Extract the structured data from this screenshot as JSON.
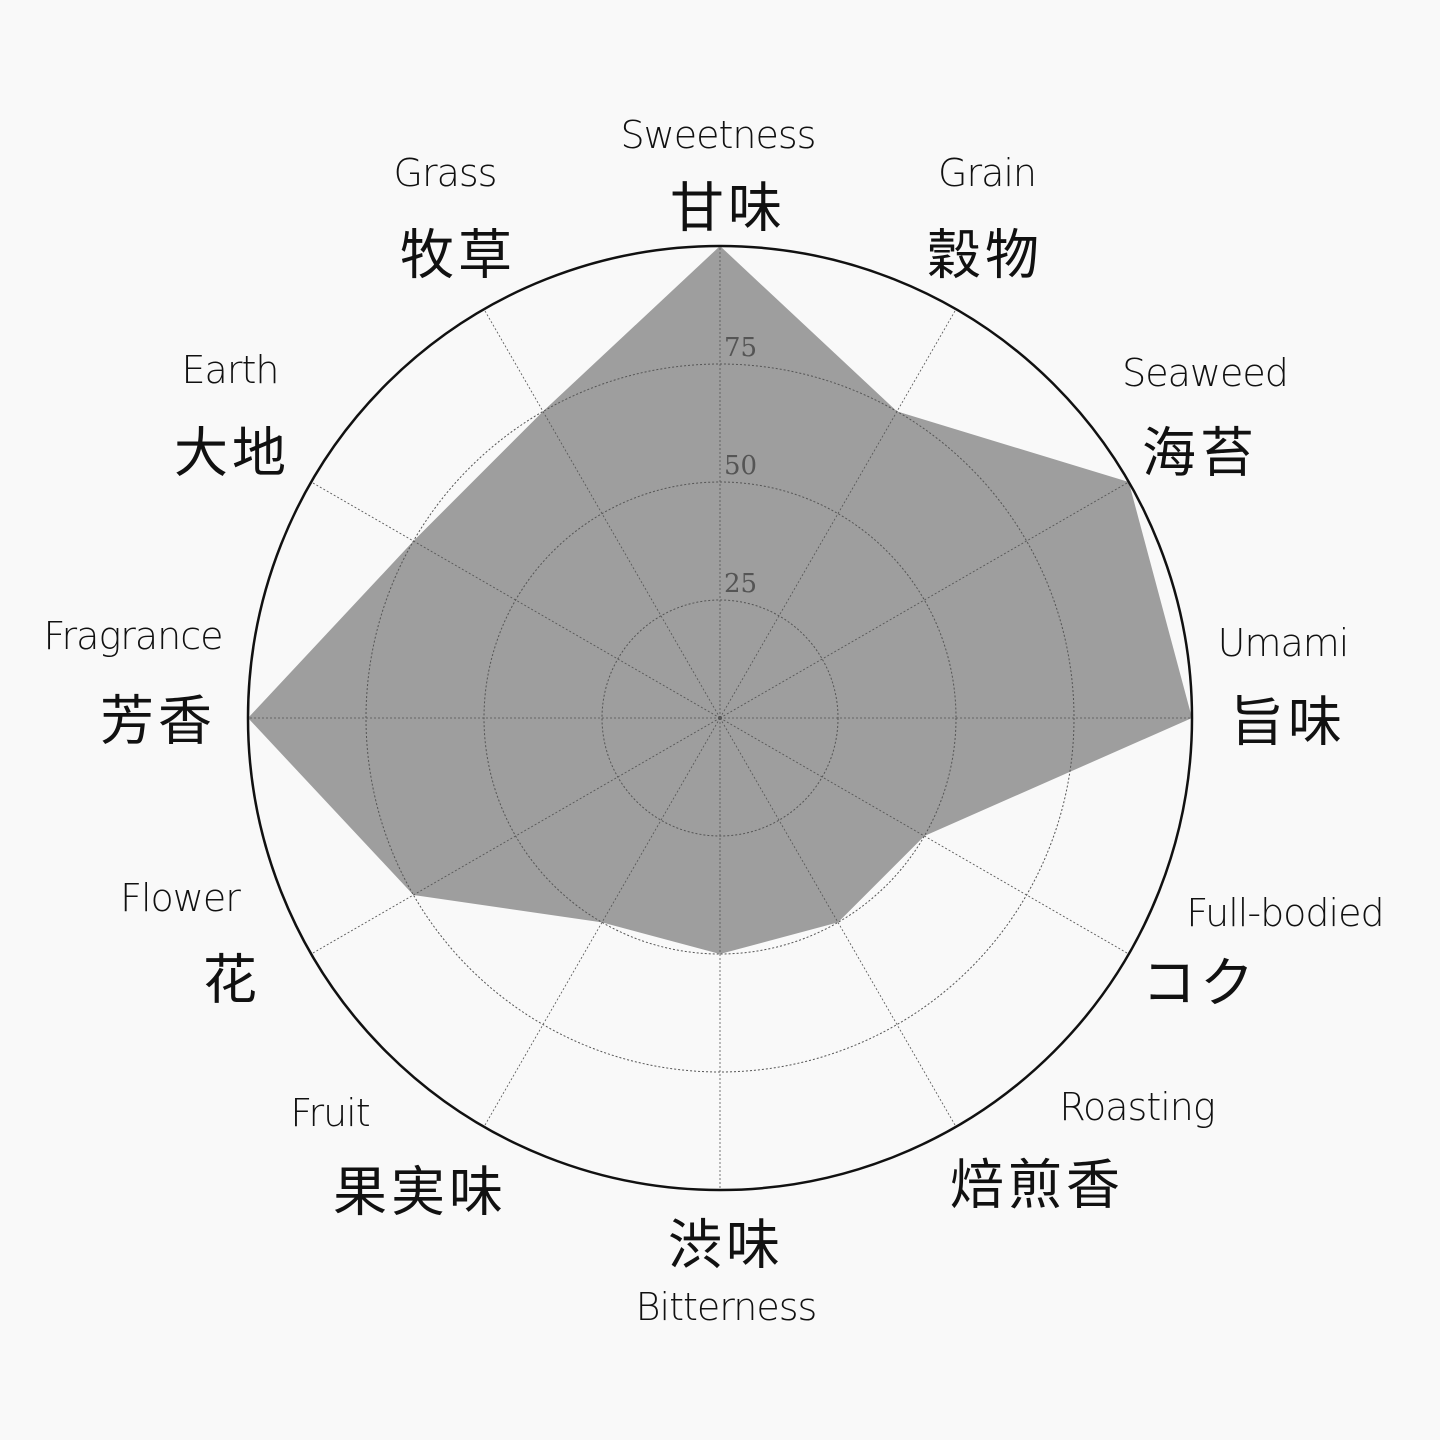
{
  "chart_data": {
    "type": "radar",
    "categories": [
      {
        "en": "Sweetness",
        "jp": "甘味"
      },
      {
        "en": "Grain",
        "jp": "穀物"
      },
      {
        "en": "Seaweed",
        "jp": "海苔"
      },
      {
        "en": "Umami",
        "jp": "旨味"
      },
      {
        "en": "Full-bodied",
        "jp": "コク"
      },
      {
        "en": "Roasting",
        "jp": "焙煎香"
      },
      {
        "en": "Bitterness",
        "jp": "渋味"
      },
      {
        "en": "Fruit",
        "jp": "果実味"
      },
      {
        "en": "Flower",
        "jp": "花"
      },
      {
        "en": "Fragrance",
        "jp": "芳香"
      },
      {
        "en": "Earth",
        "jp": "大地"
      },
      {
        "en": "Grass",
        "jp": "牧草"
      }
    ],
    "values": [
      100,
      75,
      100,
      100,
      50,
      50,
      50,
      50,
      75,
      100,
      75,
      75
    ],
    "rlim": [
      0,
      100
    ],
    "ticks": [
      "25",
      "50",
      "75"
    ],
    "grid": true,
    "fill_color": "#9e9e9e",
    "grid_color": "#555555",
    "outline_color": "#111111"
  }
}
